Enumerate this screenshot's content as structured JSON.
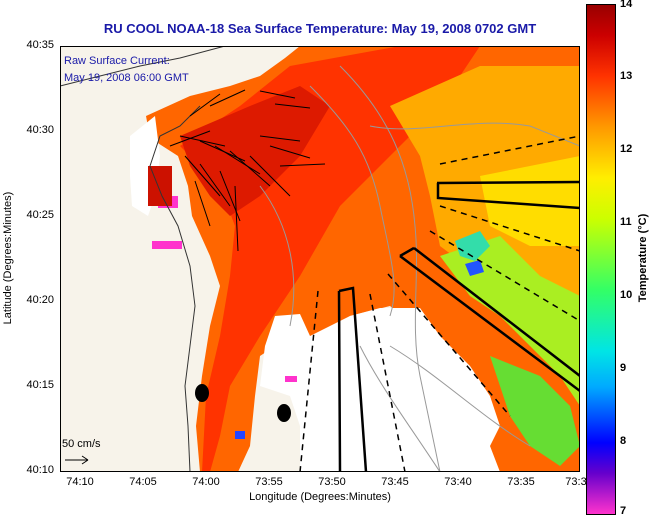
{
  "title": "RU COOL  NOAA-18  Sea Surface Temperature:  May 19, 2008 0702 GMT",
  "legend": {
    "line1": "Raw Surface Current:",
    "line2": "May 19, 2008 06:00 GMT"
  },
  "scale_label": "50 cm/s",
  "y_axis": {
    "title": "Latitude (Degrees:Minutes)",
    "ticks": [
      "40:35",
      "40:30",
      "40:25",
      "40:20",
      "40:15",
      "40:10"
    ]
  },
  "x_axis": {
    "title": "Longitude (Degrees:Minutes)",
    "ticks": [
      "74:10",
      "74:05",
      "74:00",
      "73:55",
      "73:50",
      "73:45",
      "73:40",
      "73:35",
      "73:3"
    ]
  },
  "colorbar": {
    "title": "Temperature (°C)",
    "ticks": [
      "14",
      "13",
      "12",
      "11",
      "10",
      "9",
      "8",
      "7"
    ]
  },
  "colors": {
    "title": "#1a1aa8",
    "land": "#f7f3ea",
    "warm": "#ff3300",
    "hot": "#cc1100"
  }
}
